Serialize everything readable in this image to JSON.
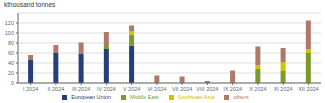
{
  "chart_data": {
    "type": "bar",
    "stacked": true,
    "ylabel": "kthousand tonnes",
    "categories": [
      "I 2024",
      "II 2024",
      "III 2024",
      "IV 2024",
      "V 2024",
      "VI 2024",
      "VII 2024",
      "VIII 2024",
      "IX 2024",
      "X 2024",
      "XI 2024",
      "XII 2024"
    ],
    "series": [
      {
        "name": "European Union",
        "color": "#243f7a",
        "values": [
          46,
          60,
          59,
          68,
          75,
          0,
          0,
          0,
          0,
          0,
          0,
          0
        ]
      },
      {
        "name": "Middle East",
        "color": "#7a9a2a",
        "values": [
          0,
          0,
          0,
          8,
          22,
          0,
          0,
          0,
          0,
          28,
          24,
          60
        ]
      },
      {
        "name": "Southeast Asia",
        "color": "#d4c000",
        "values": [
          0,
          0,
          0,
          0,
          6,
          0,
          0,
          0,
          0,
          8,
          18,
          8
        ]
      },
      {
        "name": "others",
        "color": "#b07868",
        "values": [
          10,
          16,
          22,
          26,
          12,
          15,
          13,
          4,
          25,
          37,
          28,
          57
        ]
      }
    ],
    "ylim": [
      0,
      140
    ],
    "yticks": [
      0,
      20,
      40,
      60,
      80,
      100,
      120
    ],
    "grid": true,
    "legend": "bottom"
  }
}
